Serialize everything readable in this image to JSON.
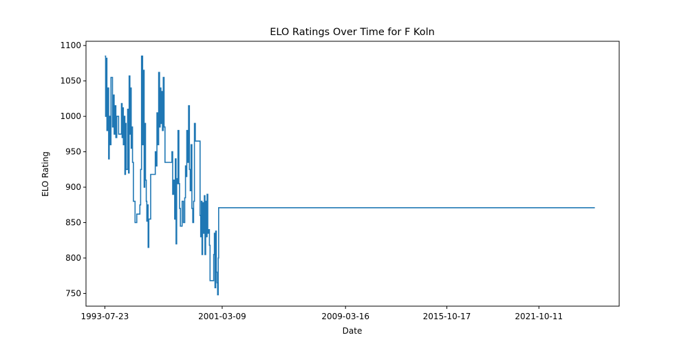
{
  "chart_data": {
    "type": "line",
    "title": "ELO Ratings Over Time for F Koln",
    "xlabel": "Date",
    "ylabel": "ELO Rating",
    "x_ticks": [
      "1993-07-23",
      "2001-03-09",
      "2009-03-16",
      "2015-10-17",
      "2021-10-11"
    ],
    "y_ticks": [
      750,
      800,
      850,
      900,
      950,
      1000,
      1050,
      1100
    ],
    "xlim": [
      "1992-05-01",
      "2026-12-31"
    ],
    "ylim": [
      732,
      1106
    ],
    "grid": false,
    "legend": "none",
    "line_color": "#1f77b4",
    "series": [
      {
        "points": [
          [
            "1993-07-23",
            1085
          ],
          [
            "1993-08-10",
            1000
          ],
          [
            "1993-08-25",
            1082
          ],
          [
            "1993-09-10",
            980
          ],
          [
            "1993-10-01",
            1040
          ],
          [
            "1993-10-20",
            940
          ],
          [
            "1993-11-05",
            1000
          ],
          [
            "1993-11-25",
            960
          ],
          [
            "1993-12-15",
            1055
          ],
          [
            "1994-01-20",
            985
          ],
          [
            "1994-02-10",
            1030
          ],
          [
            "1994-03-01",
            975
          ],
          [
            "1994-03-20",
            1015
          ],
          [
            "1994-04-10",
            970
          ],
          [
            "1994-05-01",
            1000
          ],
          [
            "1994-06-15",
            975
          ],
          [
            "1994-08-20",
            1018
          ],
          [
            "1994-09-05",
            970
          ],
          [
            "1994-09-20",
            1012
          ],
          [
            "1994-10-05",
            960
          ],
          [
            "1994-10-25",
            1000
          ],
          [
            "1994-11-10",
            918
          ],
          [
            "1994-11-25",
            990
          ],
          [
            "1994-12-10",
            925
          ],
          [
            "1995-01-15",
            1010
          ],
          [
            "1995-02-05",
            920
          ],
          [
            "1995-02-20",
            1057
          ],
          [
            "1995-03-10",
            975
          ],
          [
            "1995-03-25",
            1040
          ],
          [
            "1995-04-10",
            955
          ],
          [
            "1995-04-25",
            985
          ],
          [
            "1995-05-10",
            935
          ],
          [
            "1995-06-01",
            880
          ],
          [
            "1995-07-10",
            850
          ],
          [
            "1995-08-20",
            862
          ],
          [
            "1995-10-01",
            862
          ],
          [
            "1995-11-01",
            875
          ],
          [
            "1995-11-20",
            925
          ],
          [
            "1995-12-10",
            1085
          ],
          [
            "1996-01-05",
            960
          ],
          [
            "1996-01-20",
            1065
          ],
          [
            "1996-02-10",
            900
          ],
          [
            "1996-02-25",
            990
          ],
          [
            "1996-03-15",
            910
          ],
          [
            "1996-04-01",
            880
          ],
          [
            "1996-04-15",
            852
          ],
          [
            "1996-05-01",
            875
          ],
          [
            "1996-05-15",
            815
          ],
          [
            "1996-06-01",
            855
          ],
          [
            "1996-07-15",
            918
          ],
          [
            "1996-09-01",
            918
          ],
          [
            "1996-10-10",
            918
          ],
          [
            "1996-11-01",
            950
          ],
          [
            "1996-11-20",
            930
          ],
          [
            "1996-12-10",
            1005
          ],
          [
            "1997-01-05",
            960
          ],
          [
            "1997-01-20",
            1062
          ],
          [
            "1997-02-10",
            985
          ],
          [
            "1997-02-25",
            1040
          ],
          [
            "1997-03-15",
            990
          ],
          [
            "1997-04-01",
            1035
          ],
          [
            "1997-04-20",
            980
          ],
          [
            "1997-05-10",
            1055
          ],
          [
            "1997-05-30",
            985
          ],
          [
            "1997-06-20",
            935
          ],
          [
            "1997-09-01",
            935
          ],
          [
            "1997-11-01",
            935
          ],
          [
            "1997-12-01",
            950
          ],
          [
            "1997-12-20",
            890
          ],
          [
            "1998-01-15",
            910
          ],
          [
            "1998-02-05",
            855
          ],
          [
            "1998-02-20",
            940
          ],
          [
            "1998-03-10",
            820
          ],
          [
            "1998-03-25",
            912
          ],
          [
            "1998-04-10",
            905
          ],
          [
            "1998-04-25",
            980
          ],
          [
            "1998-05-15",
            905
          ],
          [
            "1998-06-01",
            870
          ],
          [
            "1998-06-20",
            845
          ],
          [
            "1998-08-01",
            880
          ],
          [
            "1998-09-01",
            850
          ],
          [
            "1998-10-01",
            885
          ],
          [
            "1998-10-20",
            930
          ],
          [
            "1998-11-05",
            915
          ],
          [
            "1998-11-20",
            980
          ],
          [
            "1998-12-10",
            935
          ],
          [
            "1999-01-01",
            1015
          ],
          [
            "1999-01-20",
            925
          ],
          [
            "1999-02-10",
            895
          ],
          [
            "1999-03-01",
            960
          ],
          [
            "1999-03-20",
            870
          ],
          [
            "1999-04-10",
            850
          ],
          [
            "1999-05-01",
            880
          ],
          [
            "1999-05-20",
            990
          ],
          [
            "1999-06-10",
            965
          ],
          [
            "1999-08-01",
            965
          ],
          [
            "1999-09-15",
            965
          ],
          [
            "1999-10-01",
            860
          ],
          [
            "1999-10-15",
            830
          ],
          [
            "1999-11-01",
            880
          ],
          [
            "1999-11-15",
            805
          ],
          [
            "1999-12-01",
            878
          ],
          [
            "1999-12-20",
            835
          ],
          [
            "2000-01-10",
            888
          ],
          [
            "2000-01-25",
            805
          ],
          [
            "2000-02-10",
            880
          ],
          [
            "2000-02-25",
            830
          ],
          [
            "2000-03-15",
            890
          ],
          [
            "2000-04-01",
            835
          ],
          [
            "2000-04-20",
            840
          ],
          [
            "2000-05-10",
            818
          ],
          [
            "2000-05-25",
            768
          ],
          [
            "2000-07-15",
            768
          ],
          [
            "2000-08-20",
            805
          ],
          [
            "2000-09-05",
            835
          ],
          [
            "2000-09-20",
            758
          ],
          [
            "2000-10-05",
            838
          ],
          [
            "2000-10-20",
            780
          ],
          [
            "2000-11-05",
            765
          ],
          [
            "2000-11-20",
            748
          ],
          [
            "2000-12-05",
            800
          ],
          [
            "2000-12-15",
            871
          ],
          [
            "2002-06-01",
            871
          ],
          [
            "2008-01-01",
            871
          ],
          [
            "2015-01-01",
            871
          ],
          [
            "2020-01-01",
            871
          ],
          [
            "2025-06-01",
            871
          ]
        ]
      }
    ]
  }
}
